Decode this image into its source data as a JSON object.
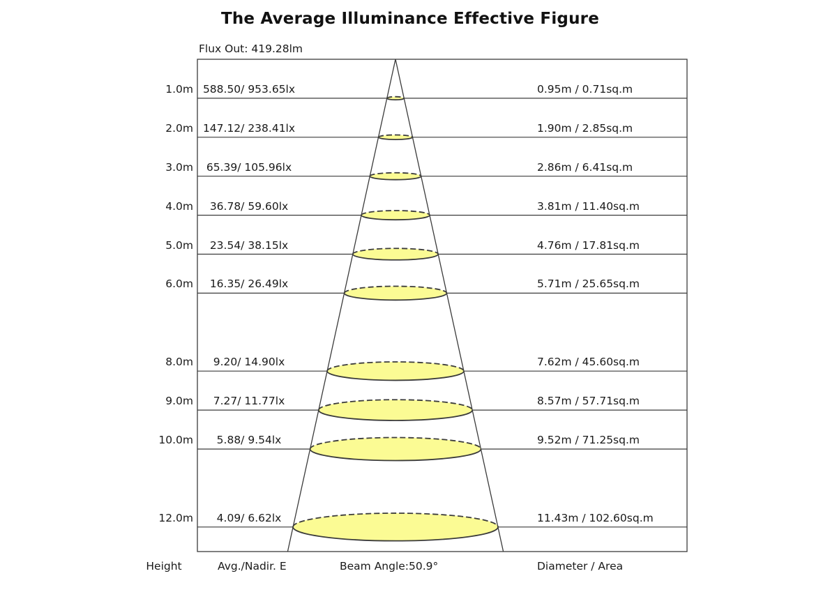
{
  "title": "The Average Illuminance Effective Figure",
  "flux_label": "Flux Out: 419.28lm",
  "footer": {
    "height_label": "Height",
    "avg_nadir_label": "Avg./Nadir. E",
    "beam_angle_label": "Beam Angle:50.9°",
    "diameter_area_label": "Diameter / Area"
  },
  "chart_data": {
    "type": "area",
    "subtype": "photometric-cone-diagram",
    "title": "The Average Illuminance Effective Figure",
    "flux_out_lm": 419.28,
    "beam_angle_deg": 50.9,
    "ylabel": "Height (m)",
    "ylim": [
      0,
      12.6
    ],
    "grid": "horizontal-rows",
    "rows": [
      {
        "height_label": "1.0m",
        "height_m": 1.0,
        "illuminance_label": "588.50/ 953.65lx",
        "avg_lx": 588.5,
        "nadir_lx": 953.65,
        "diameter_area_label": "0.95m / 0.71sq.m",
        "diameter_m": 0.95,
        "area_sqm": 0.71
      },
      {
        "height_label": "2.0m",
        "height_m": 2.0,
        "illuminance_label": "147.12/ 238.41lx",
        "avg_lx": 147.12,
        "nadir_lx": 238.41,
        "diameter_area_label": "1.90m / 2.85sq.m",
        "diameter_m": 1.9,
        "area_sqm": 2.85
      },
      {
        "height_label": "3.0m",
        "height_m": 3.0,
        "illuminance_label": "65.39/ 105.96lx",
        "avg_lx": 65.39,
        "nadir_lx": 105.96,
        "diameter_area_label": "2.86m / 6.41sq.m",
        "diameter_m": 2.86,
        "area_sqm": 6.41
      },
      {
        "height_label": "4.0m",
        "height_m": 4.0,
        "illuminance_label": "36.78/ 59.60lx",
        "avg_lx": 36.78,
        "nadir_lx": 59.6,
        "diameter_area_label": "3.81m / 11.40sq.m",
        "diameter_m": 3.81,
        "area_sqm": 11.4
      },
      {
        "height_label": "5.0m",
        "height_m": 5.0,
        "illuminance_label": "23.54/ 38.15lx",
        "avg_lx": 23.54,
        "nadir_lx": 38.15,
        "diameter_area_label": "4.76m / 17.81sq.m",
        "diameter_m": 4.76,
        "area_sqm": 17.81
      },
      {
        "height_label": "6.0m",
        "height_m": 6.0,
        "illuminance_label": "16.35/ 26.49lx",
        "avg_lx": 16.35,
        "nadir_lx": 26.49,
        "diameter_area_label": "5.71m / 25.65sq.m",
        "diameter_m": 5.71,
        "area_sqm": 25.65
      },
      {
        "height_label": "8.0m",
        "height_m": 8.0,
        "illuminance_label": "9.20/ 14.90lx",
        "avg_lx": 9.2,
        "nadir_lx": 14.9,
        "diameter_area_label": "7.62m / 45.60sq.m",
        "diameter_m": 7.62,
        "area_sqm": 45.6
      },
      {
        "height_label": "9.0m",
        "height_m": 9.0,
        "illuminance_label": "7.27/ 11.77lx",
        "avg_lx": 7.27,
        "nadir_lx": 11.77,
        "diameter_area_label": "8.57m / 57.71sq.m",
        "diameter_m": 8.57,
        "area_sqm": 57.71
      },
      {
        "height_label": "10.0m",
        "height_m": 10.0,
        "illuminance_label": "5.88/ 9.54lx",
        "avg_lx": 5.88,
        "nadir_lx": 9.54,
        "diameter_area_label": "9.52m / 71.25sq.m",
        "diameter_m": 9.52,
        "area_sqm": 71.25
      },
      {
        "height_label": "12.0m",
        "height_m": 12.0,
        "illuminance_label": "4.09/ 6.62lx",
        "avg_lx": 4.09,
        "nadir_lx": 6.62,
        "diameter_area_label": "11.43m / 102.60sq.m",
        "diameter_m": 11.43,
        "area_sqm": 102.6
      }
    ],
    "colors": {
      "beam_pool_fill": "#FBFB94",
      "line": "#3b3b3b",
      "text": "#1a1a1a",
      "background": "#ffffff"
    }
  }
}
